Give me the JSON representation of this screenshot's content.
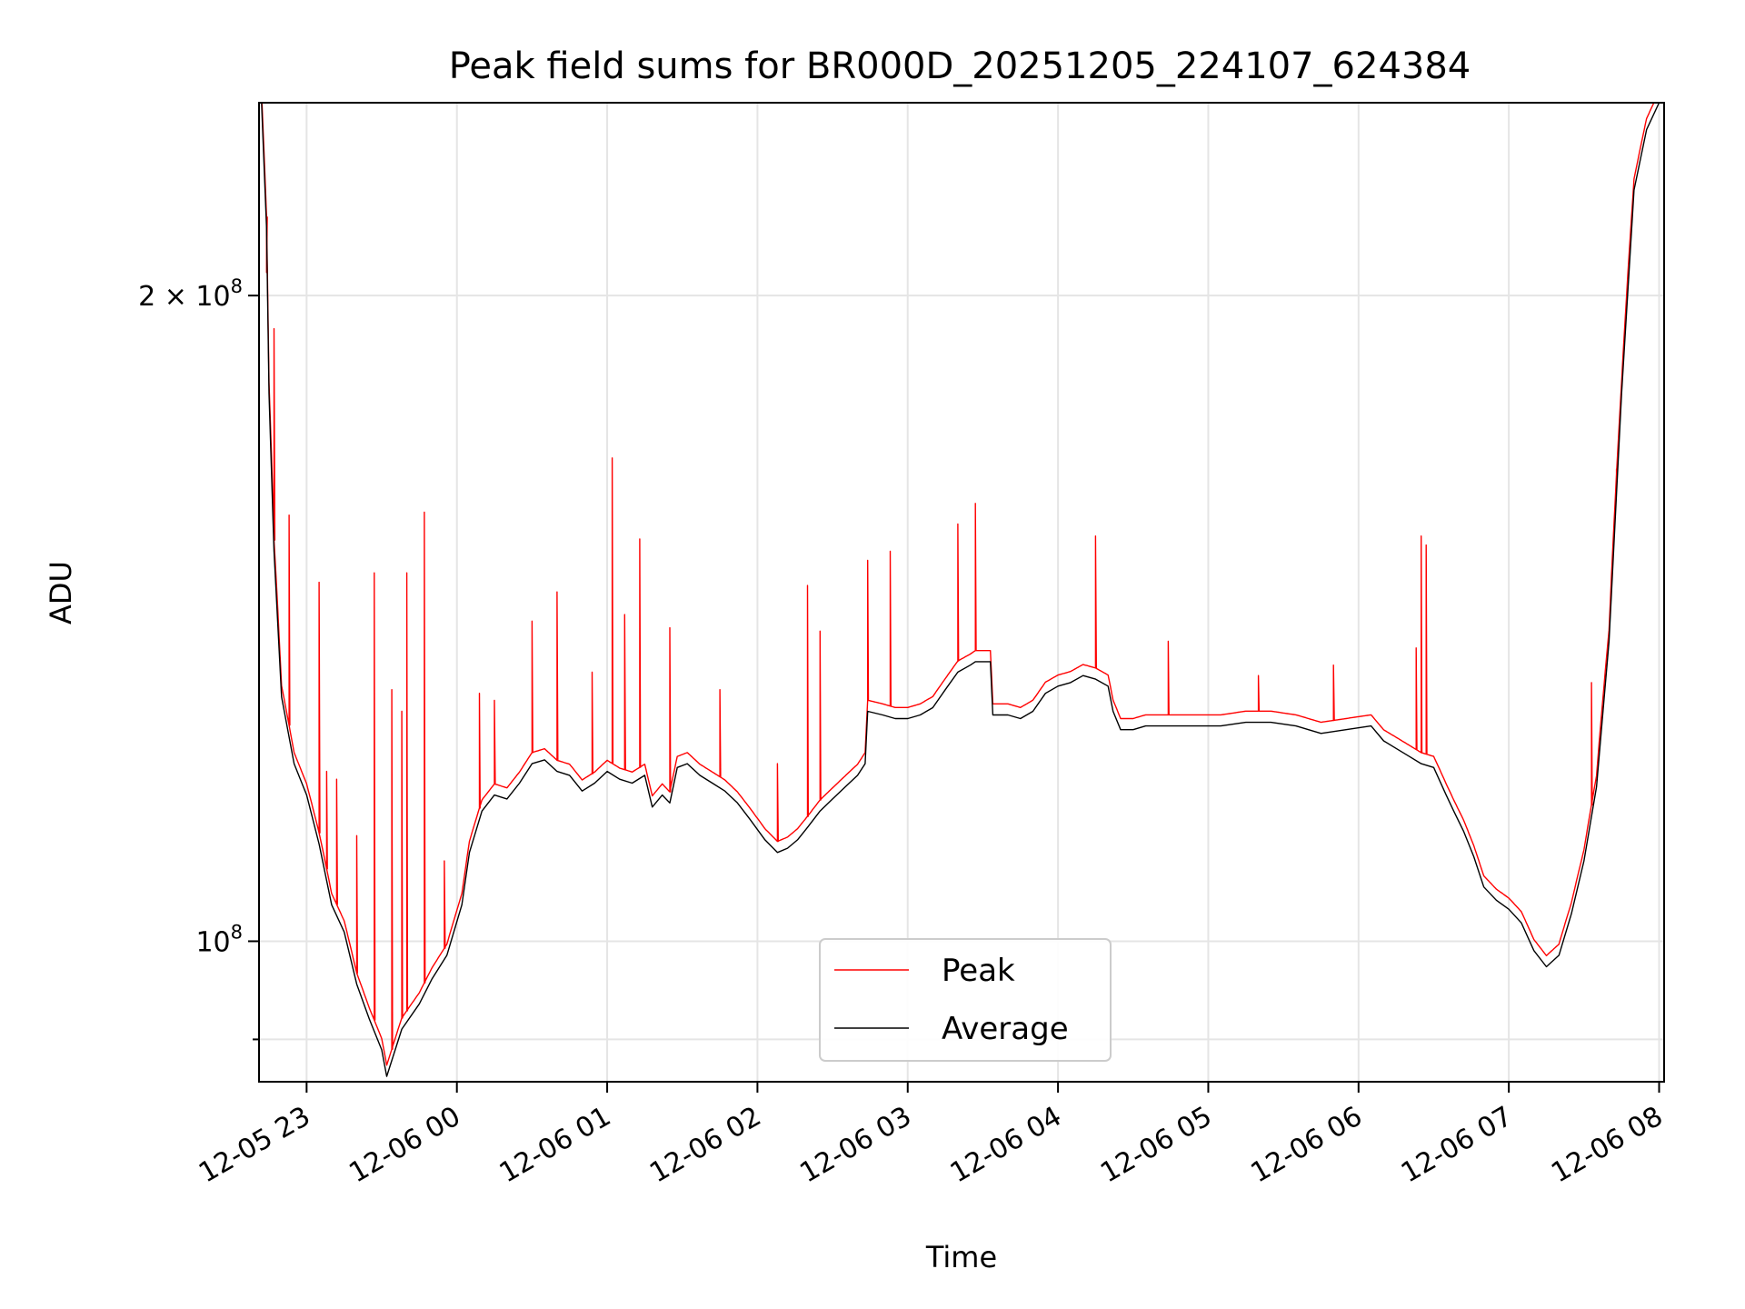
{
  "chart_data": {
    "type": "line",
    "title": "Peak field sums for BR000D_20251205_224107_624384",
    "xlabel": "Time",
    "ylabel": "ADU",
    "x_is_time": true,
    "xlim": [
      "2025-12-05 22:41",
      "2025-12-06 08:02"
    ],
    "ylim": [
      86000000,
      246000000
    ],
    "y_scale": "log",
    "grid": true,
    "legend_position": "lower center",
    "x_ticks": [
      {
        "label": "12-05 23",
        "time": "2025-12-05 23:00"
      },
      {
        "label": "12-06 00",
        "time": "2025-12-06 00:00"
      },
      {
        "label": "12-06 01",
        "time": "2025-12-06 01:00"
      },
      {
        "label": "12-06 02",
        "time": "2025-12-06 02:00"
      },
      {
        "label": "12-06 03",
        "time": "2025-12-06 03:00"
      },
      {
        "label": "12-06 04",
        "time": "2025-12-06 04:00"
      },
      {
        "label": "12-06 05",
        "time": "2025-12-06 05:00"
      },
      {
        "label": "12-06 06",
        "time": "2025-12-06 06:00"
      },
      {
        "label": "12-06 07",
        "time": "2025-12-06 07:00"
      },
      {
        "label": "12-06 08",
        "time": "2025-12-06 08:00"
      }
    ],
    "y_ticks": [
      {
        "value": 100000000,
        "base": "10",
        "exp": "8",
        "coef": ""
      },
      {
        "value": 200000000,
        "base": "10",
        "exp": "8",
        "coef": "2 × "
      }
    ],
    "y_minor_ticks": [
      90000000
    ],
    "series": [
      {
        "name": "Average",
        "color": "#000000",
        "points": [
          [
            "2025-12-05 22:42",
            246000000
          ],
          [
            "2025-12-05 22:44",
            215000000
          ],
          [
            "2025-12-05 22:45",
            180000000
          ],
          [
            "2025-12-05 22:47",
            152000000
          ],
          [
            "2025-12-05 22:50",
            130000000
          ],
          [
            "2025-12-05 22:55",
            121000000
          ],
          [
            "2025-12-05 23:00",
            117000000
          ],
          [
            "2025-12-05 23:05",
            111000000
          ],
          [
            "2025-12-05 23:10",
            104000000
          ],
          [
            "2025-12-05 23:15",
            101000000
          ],
          [
            "2025-12-05 23:20",
            95500000
          ],
          [
            "2025-12-05 23:25",
            92000000
          ],
          [
            "2025-12-05 23:30",
            89000000
          ],
          [
            "2025-12-05 23:32",
            86500000
          ],
          [
            "2025-12-05 23:38",
            91000000
          ],
          [
            "2025-12-05 23:45",
            93500000
          ],
          [
            "2025-12-05 23:50",
            96000000
          ],
          [
            "2025-12-05 23:56",
            98500000
          ],
          [
            "2025-12-06 00:02",
            104000000
          ],
          [
            "2025-12-06 00:05",
            110000000
          ],
          [
            "2025-12-06 00:10",
            115000000
          ],
          [
            "2025-12-06 00:15",
            117000000
          ],
          [
            "2025-12-06 00:20",
            116500000
          ],
          [
            "2025-12-06 00:25",
            118500000
          ],
          [
            "2025-12-06 00:30",
            121000000
          ],
          [
            "2025-12-06 00:35",
            121500000
          ],
          [
            "2025-12-06 00:40",
            120000000
          ],
          [
            "2025-12-06 00:45",
            119500000
          ],
          [
            "2025-12-06 00:50",
            117500000
          ],
          [
            "2025-12-06 00:55",
            118500000
          ],
          [
            "2025-12-06 01:00",
            120000000
          ],
          [
            "2025-12-06 01:05",
            119000000
          ],
          [
            "2025-12-06 01:10",
            118500000
          ],
          [
            "2025-12-06 01:15",
            119500000
          ],
          [
            "2025-12-06 01:18",
            115500000
          ],
          [
            "2025-12-06 01:22",
            117000000
          ],
          [
            "2025-12-06 01:25",
            116000000
          ],
          [
            "2025-12-06 01:28",
            120500000
          ],
          [
            "2025-12-06 01:32",
            121000000
          ],
          [
            "2025-12-06 01:37",
            119500000
          ],
          [
            "2025-12-06 01:42",
            118500000
          ],
          [
            "2025-12-06 01:47",
            117500000
          ],
          [
            "2025-12-06 01:52",
            116000000
          ],
          [
            "2025-12-06 01:57",
            114000000
          ],
          [
            "2025-12-06 02:03",
            111500000
          ],
          [
            "2025-12-06 02:08",
            110000000
          ],
          [
            "2025-12-06 02:12",
            110500000
          ],
          [
            "2025-12-06 02:16",
            111500000
          ],
          [
            "2025-12-06 02:20",
            113000000
          ],
          [
            "2025-12-06 02:25",
            115000000
          ],
          [
            "2025-12-06 02:30",
            116500000
          ],
          [
            "2025-12-06 02:35",
            118000000
          ],
          [
            "2025-12-06 02:40",
            119500000
          ],
          [
            "2025-12-06 02:43",
            121000000
          ],
          [
            "2025-12-06 02:44",
            128000000
          ],
          [
            "2025-12-06 02:50",
            127500000
          ],
          [
            "2025-12-06 02:55",
            127000000
          ],
          [
            "2025-12-06 03:00",
            127000000
          ],
          [
            "2025-12-06 03:05",
            127500000
          ],
          [
            "2025-12-06 03:10",
            128500000
          ],
          [
            "2025-12-06 03:15",
            131000000
          ],
          [
            "2025-12-06 03:20",
            133500000
          ],
          [
            "2025-12-06 03:25",
            134500000
          ],
          [
            "2025-12-06 03:27",
            135000000
          ],
          [
            "2025-12-06 03:33",
            135000000
          ],
          [
            "2025-12-06 03:34",
            127500000
          ],
          [
            "2025-12-06 03:40",
            127500000
          ],
          [
            "2025-12-06 03:45",
            127000000
          ],
          [
            "2025-12-06 03:50",
            128000000
          ],
          [
            "2025-12-06 03:55",
            130500000
          ],
          [
            "2025-12-06 04:00",
            131500000
          ],
          [
            "2025-12-06 04:05",
            132000000
          ],
          [
            "2025-12-06 04:10",
            133000000
          ],
          [
            "2025-12-06 04:15",
            132500000
          ],
          [
            "2025-12-06 04:20",
            131500000
          ],
          [
            "2025-12-06 04:22",
            128000000
          ],
          [
            "2025-12-06 04:25",
            125500000
          ],
          [
            "2025-12-06 04:30",
            125500000
          ],
          [
            "2025-12-06 04:35",
            126000000
          ],
          [
            "2025-12-06 04:45",
            126000000
          ],
          [
            "2025-12-06 04:55",
            126000000
          ],
          [
            "2025-12-06 05:05",
            126000000
          ],
          [
            "2025-12-06 05:15",
            126500000
          ],
          [
            "2025-12-06 05:25",
            126500000
          ],
          [
            "2025-12-06 05:35",
            126000000
          ],
          [
            "2025-12-06 05:45",
            125000000
          ],
          [
            "2025-12-06 05:55",
            125500000
          ],
          [
            "2025-12-06 06:05",
            126000000
          ],
          [
            "2025-12-06 06:10",
            124000000
          ],
          [
            "2025-12-06 06:15",
            123000000
          ],
          [
            "2025-12-06 06:20",
            122000000
          ],
          [
            "2025-12-06 06:25",
            121000000
          ],
          [
            "2025-12-06 06:30",
            120500000
          ],
          [
            "2025-12-06 06:35",
            117000000
          ],
          [
            "2025-12-06 06:38",
            115000000
          ],
          [
            "2025-12-06 06:42",
            112500000
          ],
          [
            "2025-12-06 06:46",
            109500000
          ],
          [
            "2025-12-06 06:50",
            106000000
          ],
          [
            "2025-12-06 06:55",
            104500000
          ],
          [
            "2025-12-06 07:00",
            103500000
          ],
          [
            "2025-12-06 07:05",
            102000000
          ],
          [
            "2025-12-06 07:10",
            99000000
          ],
          [
            "2025-12-06 07:15",
            97300000
          ],
          [
            "2025-12-06 07:20",
            98500000
          ],
          [
            "2025-12-06 07:25",
            103000000
          ],
          [
            "2025-12-06 07:30",
            109000000
          ],
          [
            "2025-12-06 07:35",
            118000000
          ],
          [
            "2025-12-06 07:40",
            138000000
          ],
          [
            "2025-12-06 07:45",
            180000000
          ],
          [
            "2025-12-06 07:50",
            224000000
          ],
          [
            "2025-12-06 07:55",
            239000000
          ],
          [
            "2025-12-06 08:00",
            246000000
          ]
        ]
      },
      {
        "name": "Peak",
        "color": "#ff0000",
        "points": [
          [
            "2025-12-05 22:44",
            205000000
          ],
          [
            "2025-12-05 22:47",
            193000000
          ],
          [
            "2025-12-05 22:53",
            158000000
          ],
          [
            "2025-12-05 23:05",
            147000000
          ],
          [
            "2025-12-05 23:08",
            120000000
          ],
          [
            "2025-12-05 23:12",
            119000000
          ],
          [
            "2025-12-05 23:20",
            112000000
          ],
          [
            "2025-12-05 23:27",
            148500000
          ],
          [
            "2025-12-05 23:34",
            131000000
          ],
          [
            "2025-12-05 23:38",
            128000000
          ],
          [
            "2025-12-05 23:40",
            148500000
          ],
          [
            "2025-12-05 23:47",
            158500000
          ],
          [
            "2025-12-05 23:55",
            109000000
          ],
          [
            "2025-12-06 00:09",
            130500000
          ],
          [
            "2025-12-06 00:15",
            129500000
          ],
          [
            "2025-12-06 00:30",
            141000000
          ],
          [
            "2025-12-06 00:40",
            145500000
          ],
          [
            "2025-12-06 00:54",
            133500000
          ],
          [
            "2025-12-06 01:02",
            168000000
          ],
          [
            "2025-12-06 01:07",
            142000000
          ],
          [
            "2025-12-06 01:13",
            154000000
          ],
          [
            "2025-12-06 01:25",
            140000000
          ],
          [
            "2025-12-06 01:45",
            131000000
          ],
          [
            "2025-12-06 02:08",
            121000000
          ],
          [
            "2025-12-06 02:20",
            146500000
          ],
          [
            "2025-12-06 02:25",
            139500000
          ],
          [
            "2025-12-06 02:44",
            150500000
          ],
          [
            "2025-12-06 02:53",
            152000000
          ],
          [
            "2025-12-06 03:20",
            156500000
          ],
          [
            "2025-12-06 03:27",
            160000000
          ],
          [
            "2025-12-06 04:15",
            154500000
          ],
          [
            "2025-12-06 04:44",
            138000000
          ],
          [
            "2025-12-06 05:20",
            133000000
          ],
          [
            "2025-12-06 05:50",
            134500000
          ],
          [
            "2025-12-06 06:23",
            137000000
          ],
          [
            "2025-12-06 06:25",
            154500000
          ],
          [
            "2025-12-06 06:27",
            153000000
          ],
          [
            "2025-12-06 07:33",
            132000000
          ],
          [
            "2025-12-06 07:43",
            166000000
          ]
        ]
      }
    ]
  }
}
